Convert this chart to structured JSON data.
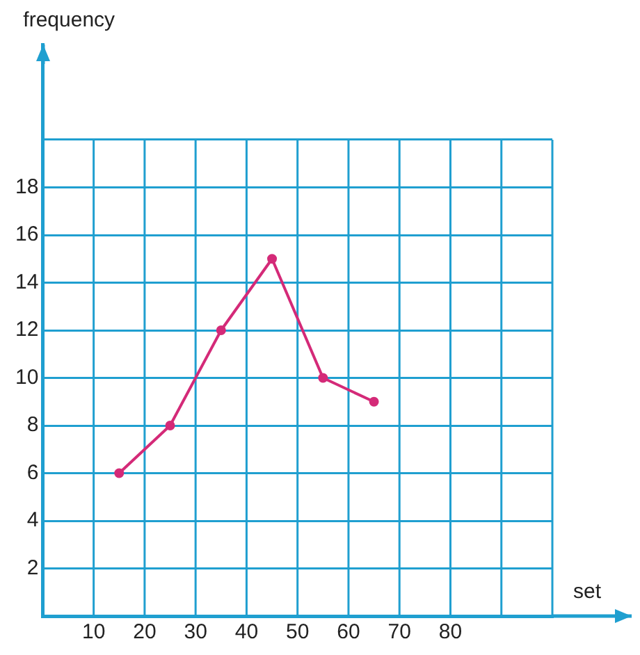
{
  "chart_data": {
    "type": "line",
    "annotations": [
      "frequency",
      "set"
    ],
    "x": [
      15,
      25,
      35,
      45,
      55,
      65
    ],
    "series": [
      {
        "color": "#d42a78",
        "values": [
          6,
          8,
          12,
          15,
          10,
          9
        ]
      }
    ],
    "xlim": [
      0,
      100
    ],
    "xticks": [
      {
        "value": 0,
        "label": null
      },
      10,
      20,
      30,
      40,
      50,
      60,
      70,
      80,
      {
        "value": 90,
        "label": null
      },
      {
        "value": 100,
        "label": null
      }
    ],
    "ylim": [
      0,
      24
    ],
    "yticks": [
      {
        "value": 0,
        "label": null
      },
      2,
      4,
      6,
      8,
      10,
      12,
      14,
      16,
      18,
      {
        "value": 20,
        "label": null
      }
    ],
    "grid": true,
    "legend": false,
    "marker": "circle",
    "line_style": "solid"
  }
}
